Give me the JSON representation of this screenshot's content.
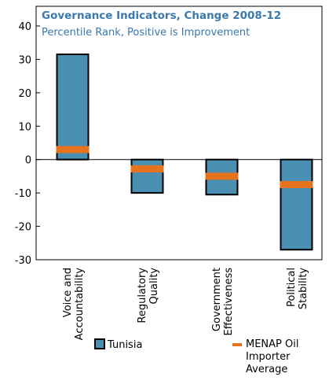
{
  "chart_data": {
    "type": "bar",
    "title": "Governance Indicators, Change 2008-12",
    "subtitle": "Percentile Rank, Positive is Improvement",
    "categories": [
      [
        "Voice and",
        "Accountability"
      ],
      [
        "Regulatory",
        "Quality"
      ],
      [
        "Government",
        "Effectiveness"
      ],
      [
        "Political",
        "Stability"
      ]
    ],
    "series": [
      {
        "name": "Tunisia",
        "color": "#4a8fb2",
        "values": [
          31.5,
          -10,
          -10.5,
          -27
        ]
      },
      {
        "name": "MENAP Oil Importer Average",
        "color": "#e8731e",
        "values": [
          3,
          -2.8,
          -5,
          -7.5
        ]
      }
    ],
    "ylim": [
      -30,
      40
    ],
    "yticks": [
      -30,
      -20,
      -10,
      0,
      10,
      20,
      30,
      40
    ],
    "grid": false
  }
}
